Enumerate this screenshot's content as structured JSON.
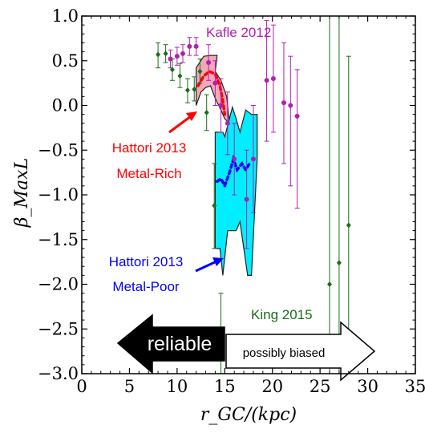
{
  "chart_data": {
    "type": "scatter",
    "xlabel": "r_GC/(kpc)",
    "ylabel": "β_MaxL",
    "xlim": [
      0,
      35
    ],
    "ylim": [
      -3.0,
      1.0
    ],
    "x_ticks": [
      "0",
      "5",
      "10",
      "15",
      "20",
      "25",
      "30",
      "35"
    ],
    "y_ticks": [
      "1.0",
      "0.5",
      "0.0",
      "−0.5",
      "−1.0",
      "−1.5",
      "−2.0",
      "−2.5",
      "−3.0"
    ],
    "grid": false,
    "series": [
      {
        "name": "Kafle 2012",
        "color": "#b020b0",
        "points": [
          {
            "x": 9.3,
            "y": 0.52,
            "lo": 0.42,
            "hi": 0.62
          },
          {
            "x": 10.0,
            "y": 0.55,
            "lo": 0.45,
            "hi": 0.65
          },
          {
            "x": 10.6,
            "y": 0.58,
            "lo": 0.48,
            "hi": 0.68
          },
          {
            "x": 11.3,
            "y": 0.66,
            "lo": 0.56,
            "hi": 0.76
          },
          {
            "x": 12.0,
            "y": 0.66,
            "lo": 0.56,
            "hi": 0.76
          },
          {
            "x": 13.3,
            "y": 0.48,
            "lo": 0.28,
            "hi": 0.68
          },
          {
            "x": 14.0,
            "y": 0.25,
            "lo": 0.0,
            "hi": 0.5
          },
          {
            "x": 14.6,
            "y": 0.0,
            "lo": -0.3,
            "hi": 0.3
          },
          {
            "x": 15.3,
            "y": -0.2,
            "lo": -0.55,
            "hi": 0.15
          },
          {
            "x": 16.0,
            "y": -0.6,
            "lo": -1.0,
            "hi": -0.2
          },
          {
            "x": 17.3,
            "y": -1.05,
            "lo": -1.6,
            "hi": -0.5
          },
          {
            "x": 18.0,
            "y": -0.6,
            "lo": -1.2,
            "hi": 0.0
          },
          {
            "x": 19.4,
            "y": 0.28,
            "lo": -0.4,
            "hi": 0.95
          },
          {
            "x": 20.1,
            "y": 0.3,
            "lo": -0.3,
            "hi": 0.9
          },
          {
            "x": 21.2,
            "y": 0.03,
            "lo": -0.65,
            "hi": 0.7
          },
          {
            "x": 21.9,
            "y": 0.0,
            "lo": -0.9,
            "hi": 0.55
          },
          {
            "x": 22.6,
            "y": -0.12,
            "lo": -1.15,
            "hi": 0.4
          }
        ]
      },
      {
        "name": "King 2015",
        "color": "#1a6e1a",
        "points": [
          {
            "x": 8.0,
            "y": 0.57,
            "lo": 0.42,
            "hi": 0.7
          },
          {
            "x": 8.8,
            "y": 0.58,
            "lo": 0.48,
            "hi": 0.68
          },
          {
            "x": 9.5,
            "y": 0.4,
            "lo": 0.28,
            "hi": 0.52
          },
          {
            "x": 10.3,
            "y": 0.33,
            "lo": 0.2,
            "hi": 0.47
          },
          {
            "x": 11.1,
            "y": 0.17,
            "lo": 0.03,
            "hi": 0.3
          },
          {
            "x": 11.8,
            "y": 0.18,
            "lo": 0.05,
            "hi": 0.32
          },
          {
            "x": 12.4,
            "y": 0.38,
            "lo": 0.25,
            "hi": 0.52
          },
          {
            "x": 13.1,
            "y": -0.08,
            "lo": -0.28,
            "hi": 0.12
          },
          {
            "x": 13.9,
            "y": -1.12,
            "lo": -1.6,
            "hi": -0.65
          },
          {
            "x": 14.6,
            "y": -2.62,
            "lo": -3.0,
            "hi": -2.1
          },
          {
            "x": 26.0,
            "y": -2.0,
            "lo": -3.0,
            "hi": 1.0
          },
          {
            "x": 27.0,
            "y": -1.76,
            "lo": -3.0,
            "hi": 1.0
          },
          {
            "x": 28.0,
            "y": -1.34,
            "lo": -3.0,
            "hi": 0.55
          }
        ]
      }
    ],
    "bands": [
      {
        "name": "Hattori 2013 Metal-Rich",
        "fill": "#f4a8b8",
        "edge": "#222222",
        "line_color": "#ff0000",
        "upper": [
          [
            12.0,
            0.42
          ],
          [
            12.8,
            0.55
          ],
          [
            13.5,
            0.56
          ],
          [
            14.2,
            0.56
          ],
          [
            14.0,
            0.38
          ],
          [
            14.6,
            0.28
          ],
          [
            15.2,
            0.1
          ],
          [
            15.5,
            -0.2
          ]
        ],
        "lower": [
          [
            12.0,
            0.0
          ],
          [
            12.5,
            0.15
          ],
          [
            13.0,
            0.2
          ],
          [
            13.5,
            0.22
          ],
          [
            14.0,
            0.08
          ],
          [
            14.6,
            -0.05
          ],
          [
            15.0,
            -0.15
          ],
          [
            15.5,
            -0.2
          ]
        ],
        "line": [
          [
            12.2,
            0.22
          ],
          [
            12.8,
            0.33
          ],
          [
            13.4,
            0.38
          ],
          [
            14.0,
            0.35
          ],
          [
            14.5,
            0.22
          ],
          [
            14.8,
            0.05
          ],
          [
            15.0,
            -0.1
          ]
        ]
      },
      {
        "name": "Hattori 2013 Metal-Poor",
        "fill": "#00eeff",
        "edge": "#222222",
        "line_color": "#0000ff",
        "upper": [
          [
            14.0,
            -0.3
          ],
          [
            14.8,
            -0.3
          ],
          [
            15.0,
            -0.35
          ],
          [
            15.8,
            -0.02
          ],
          [
            16.2,
            -0.15
          ],
          [
            16.6,
            -0.3
          ],
          [
            17.2,
            -0.05
          ],
          [
            17.8,
            -0.1
          ],
          [
            18.4,
            -0.1
          ],
          [
            18.4,
            -0.6
          ]
        ],
        "lower": [
          [
            14.0,
            -0.3
          ],
          [
            14.0,
            -1.6
          ],
          [
            14.5,
            -1.6
          ],
          [
            14.8,
            -1.9
          ],
          [
            15.3,
            -1.4
          ],
          [
            16.2,
            -1.4
          ],
          [
            16.6,
            -1.3
          ],
          [
            17.4,
            -1.9
          ],
          [
            17.8,
            -1.9
          ],
          [
            18.4,
            -0.6
          ]
        ],
        "line": [
          [
            14.2,
            -0.85
          ],
          [
            14.6,
            -0.82
          ],
          [
            15.0,
            -0.9
          ],
          [
            15.5,
            -0.75
          ],
          [
            15.9,
            -0.6
          ],
          [
            16.3,
            -0.72
          ],
          [
            16.8,
            -0.65
          ],
          [
            17.2,
            -0.72
          ],
          [
            17.6,
            -0.65
          ]
        ]
      }
    ],
    "annotations": [
      {
        "id": "kafle",
        "text": "Kafle 2012",
        "color": "#b020b0"
      },
      {
        "id": "hattori_rich_1",
        "text": "Hattori 2013",
        "color": "#ff0000"
      },
      {
        "id": "hattori_rich_2",
        "text": "Metal-Rich",
        "color": "#ff0000"
      },
      {
        "id": "hattori_poor_1",
        "text": "Hattori 2013",
        "color": "#0000ff"
      },
      {
        "id": "hattori_poor_2",
        "text": "Metal-Poor",
        "color": "#0000ff"
      },
      {
        "id": "king",
        "text": "King 2015",
        "color": "#1a6e1a"
      }
    ],
    "arrows": [
      {
        "id": "reliable",
        "text": "reliable",
        "fill": "#000000",
        "text_color": "#ffffff"
      },
      {
        "id": "biased",
        "text": "possibly biased",
        "fill": "#ffffff",
        "text_color": "#000000"
      }
    ]
  }
}
